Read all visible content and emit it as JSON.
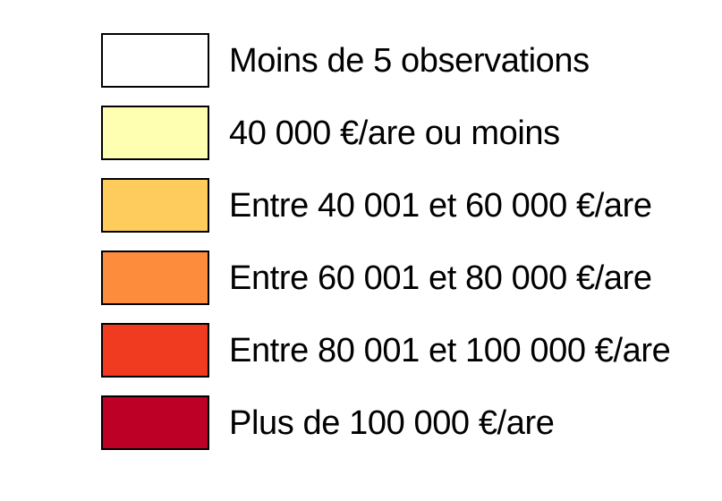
{
  "legend": {
    "items": [
      {
        "label": "Moins de 5 observations",
        "color": "#FFFFFF"
      },
      {
        "label": "40 000 €/are ou moins",
        "color": "#FFFFB2"
      },
      {
        "label": "Entre 40 001 et 60 000 €/are",
        "color": "#FECC5C"
      },
      {
        "label": "Entre 60 001 et 80 000 €/are",
        "color": "#FD8D3C"
      },
      {
        "label": "Entre 80 001 et 100 000 €/are",
        "color": "#F03B20"
      },
      {
        "label": "Plus de 100 000 €/are",
        "color": "#BD0026"
      }
    ],
    "swatch_border_color": "#000000",
    "text_color": "#000000",
    "page_background": "#FFFFFF"
  }
}
